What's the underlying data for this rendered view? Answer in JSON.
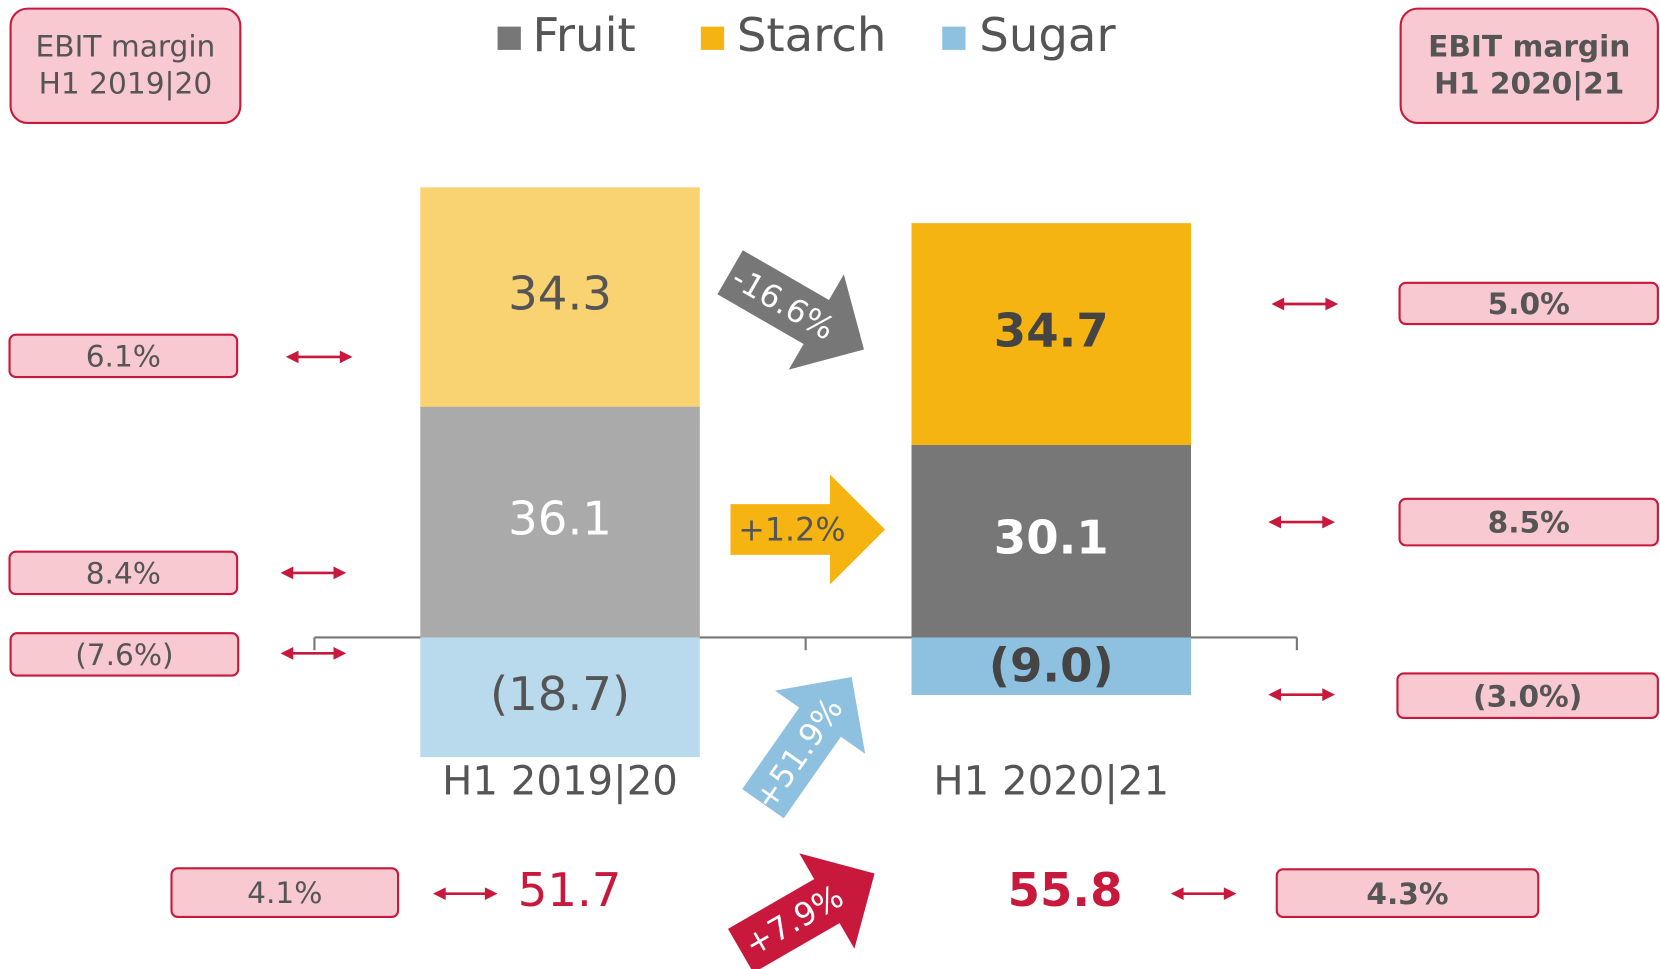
{
  "chart_data": {
    "type": "bar",
    "categories": [
      "H1 2019|20",
      "H1 2020|21"
    ],
    "series": [
      {
        "name": "Fruit",
        "color": "#777777",
        "colors": [
          "#aaaaaa",
          "#777777"
        ],
        "values": [
          36.1,
          30.1
        ]
      },
      {
        "name": "Starch",
        "color": "#f5b412",
        "colors": [
          "#f9d272",
          "#f5b412"
        ],
        "values": [
          34.3,
          34.7
        ]
      },
      {
        "name": "Sugar",
        "color": "#8ec1df",
        "colors": [
          "#b9d9ec",
          "#8ec1df"
        ],
        "values": [
          -18.7,
          -9.0
        ],
        "value_labels": [
          "(18.7)",
          "(9.0)"
        ]
      }
    ],
    "totals": [
      51.7,
      55.8
    ],
    "changes": {
      "values": [
        -16.6,
        1.2,
        51.9,
        7.9
      ],
      "value_labels": [
        "-16.6%",
        "+1.2%",
        "+51.9%",
        "+7.9%"
      ],
      "colors": [
        "#777777",
        "#f5b412",
        "#8ec1df",
        "#c8193c"
      ]
    },
    "ebit_margins": [
      {
        "header": [
          "EBIT margin",
          "H1 2019|20"
        ],
        "values": [
          6.1,
          8.4,
          -7.6,
          4.1
        ],
        "value_labels": [
          "6.1%",
          "8.4%",
          "(7.6%)",
          "4.1%"
        ]
      },
      {
        "header": [
          "EBIT margin",
          "H1 2020|21"
        ],
        "values": [
          5.0,
          8.5,
          -3.0,
          4.3
        ],
        "value_labels": [
          "5.0%",
          "8.5%",
          "(3.0%)",
          "4.3%"
        ]
      }
    ]
  }
}
